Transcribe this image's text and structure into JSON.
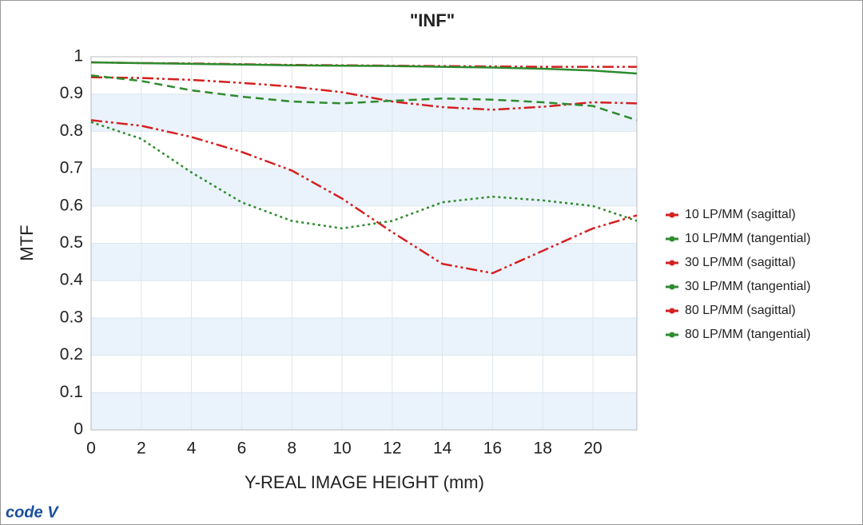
{
  "chart_data": {
    "type": "line",
    "title": "\"INF\"",
    "x_label": "Y-REAL IMAGE HEIGHT (mm)",
    "y_label": "MTF",
    "logo": "code V",
    "x": [
      0,
      2,
      4,
      6,
      8,
      10,
      12,
      14,
      16,
      18,
      20,
      21.75
    ],
    "xlim": [
      0,
      21.75
    ],
    "xticks": [
      0,
      2,
      4,
      6,
      8,
      10,
      12,
      14,
      16,
      18,
      20
    ],
    "ylim": [
      0,
      1
    ],
    "yticks": [
      0,
      0.1,
      0.2,
      0.3,
      0.4,
      0.5,
      0.6,
      0.7,
      0.8,
      0.9,
      1
    ],
    "grid": true,
    "legend": "right",
    "series": [
      {
        "name": "10 LP/MM (sagittal)",
        "color": "#d42020",
        "dash": "dashdot",
        "values": [
          0.985,
          0.983,
          0.982,
          0.98,
          0.978,
          0.977,
          0.976,
          0.975,
          0.974,
          0.973,
          0.973,
          0.973
        ]
      },
      {
        "name": "10 LP/MM (tangential)",
        "color": "#2e8b2e",
        "dash": "solid",
        "values": [
          0.985,
          0.983,
          0.981,
          0.979,
          0.977,
          0.976,
          0.975,
          0.973,
          0.971,
          0.968,
          0.963,
          0.955
        ]
      },
      {
        "name": "30 LP/MM (sagittal)",
        "color": "#d42020",
        "dash": "dashdot",
        "values": [
          0.945,
          0.943,
          0.938,
          0.93,
          0.92,
          0.905,
          0.88,
          0.865,
          0.858,
          0.866,
          0.878,
          0.875
        ]
      },
      {
        "name": "30 LP/MM (tangential)",
        "color": "#2e8b2e",
        "dash": "dashed",
        "values": [
          0.95,
          0.935,
          0.91,
          0.893,
          0.88,
          0.875,
          0.882,
          0.888,
          0.885,
          0.878,
          0.868,
          0.83
        ]
      },
      {
        "name": "80 LP/MM (sagittal)",
        "color": "#d42020",
        "dash": "dashdot",
        "values": [
          0.83,
          0.815,
          0.785,
          0.745,
          0.695,
          0.62,
          0.53,
          0.445,
          0.42,
          0.48,
          0.54,
          0.575
        ]
      },
      {
        "name": "80 LP/MM (tangential)",
        "color": "#2e8b2e",
        "dash": "dotted",
        "values": [
          0.825,
          0.78,
          0.69,
          0.61,
          0.56,
          0.54,
          0.56,
          0.61,
          0.625,
          0.615,
          0.6,
          0.56
        ]
      }
    ]
  }
}
